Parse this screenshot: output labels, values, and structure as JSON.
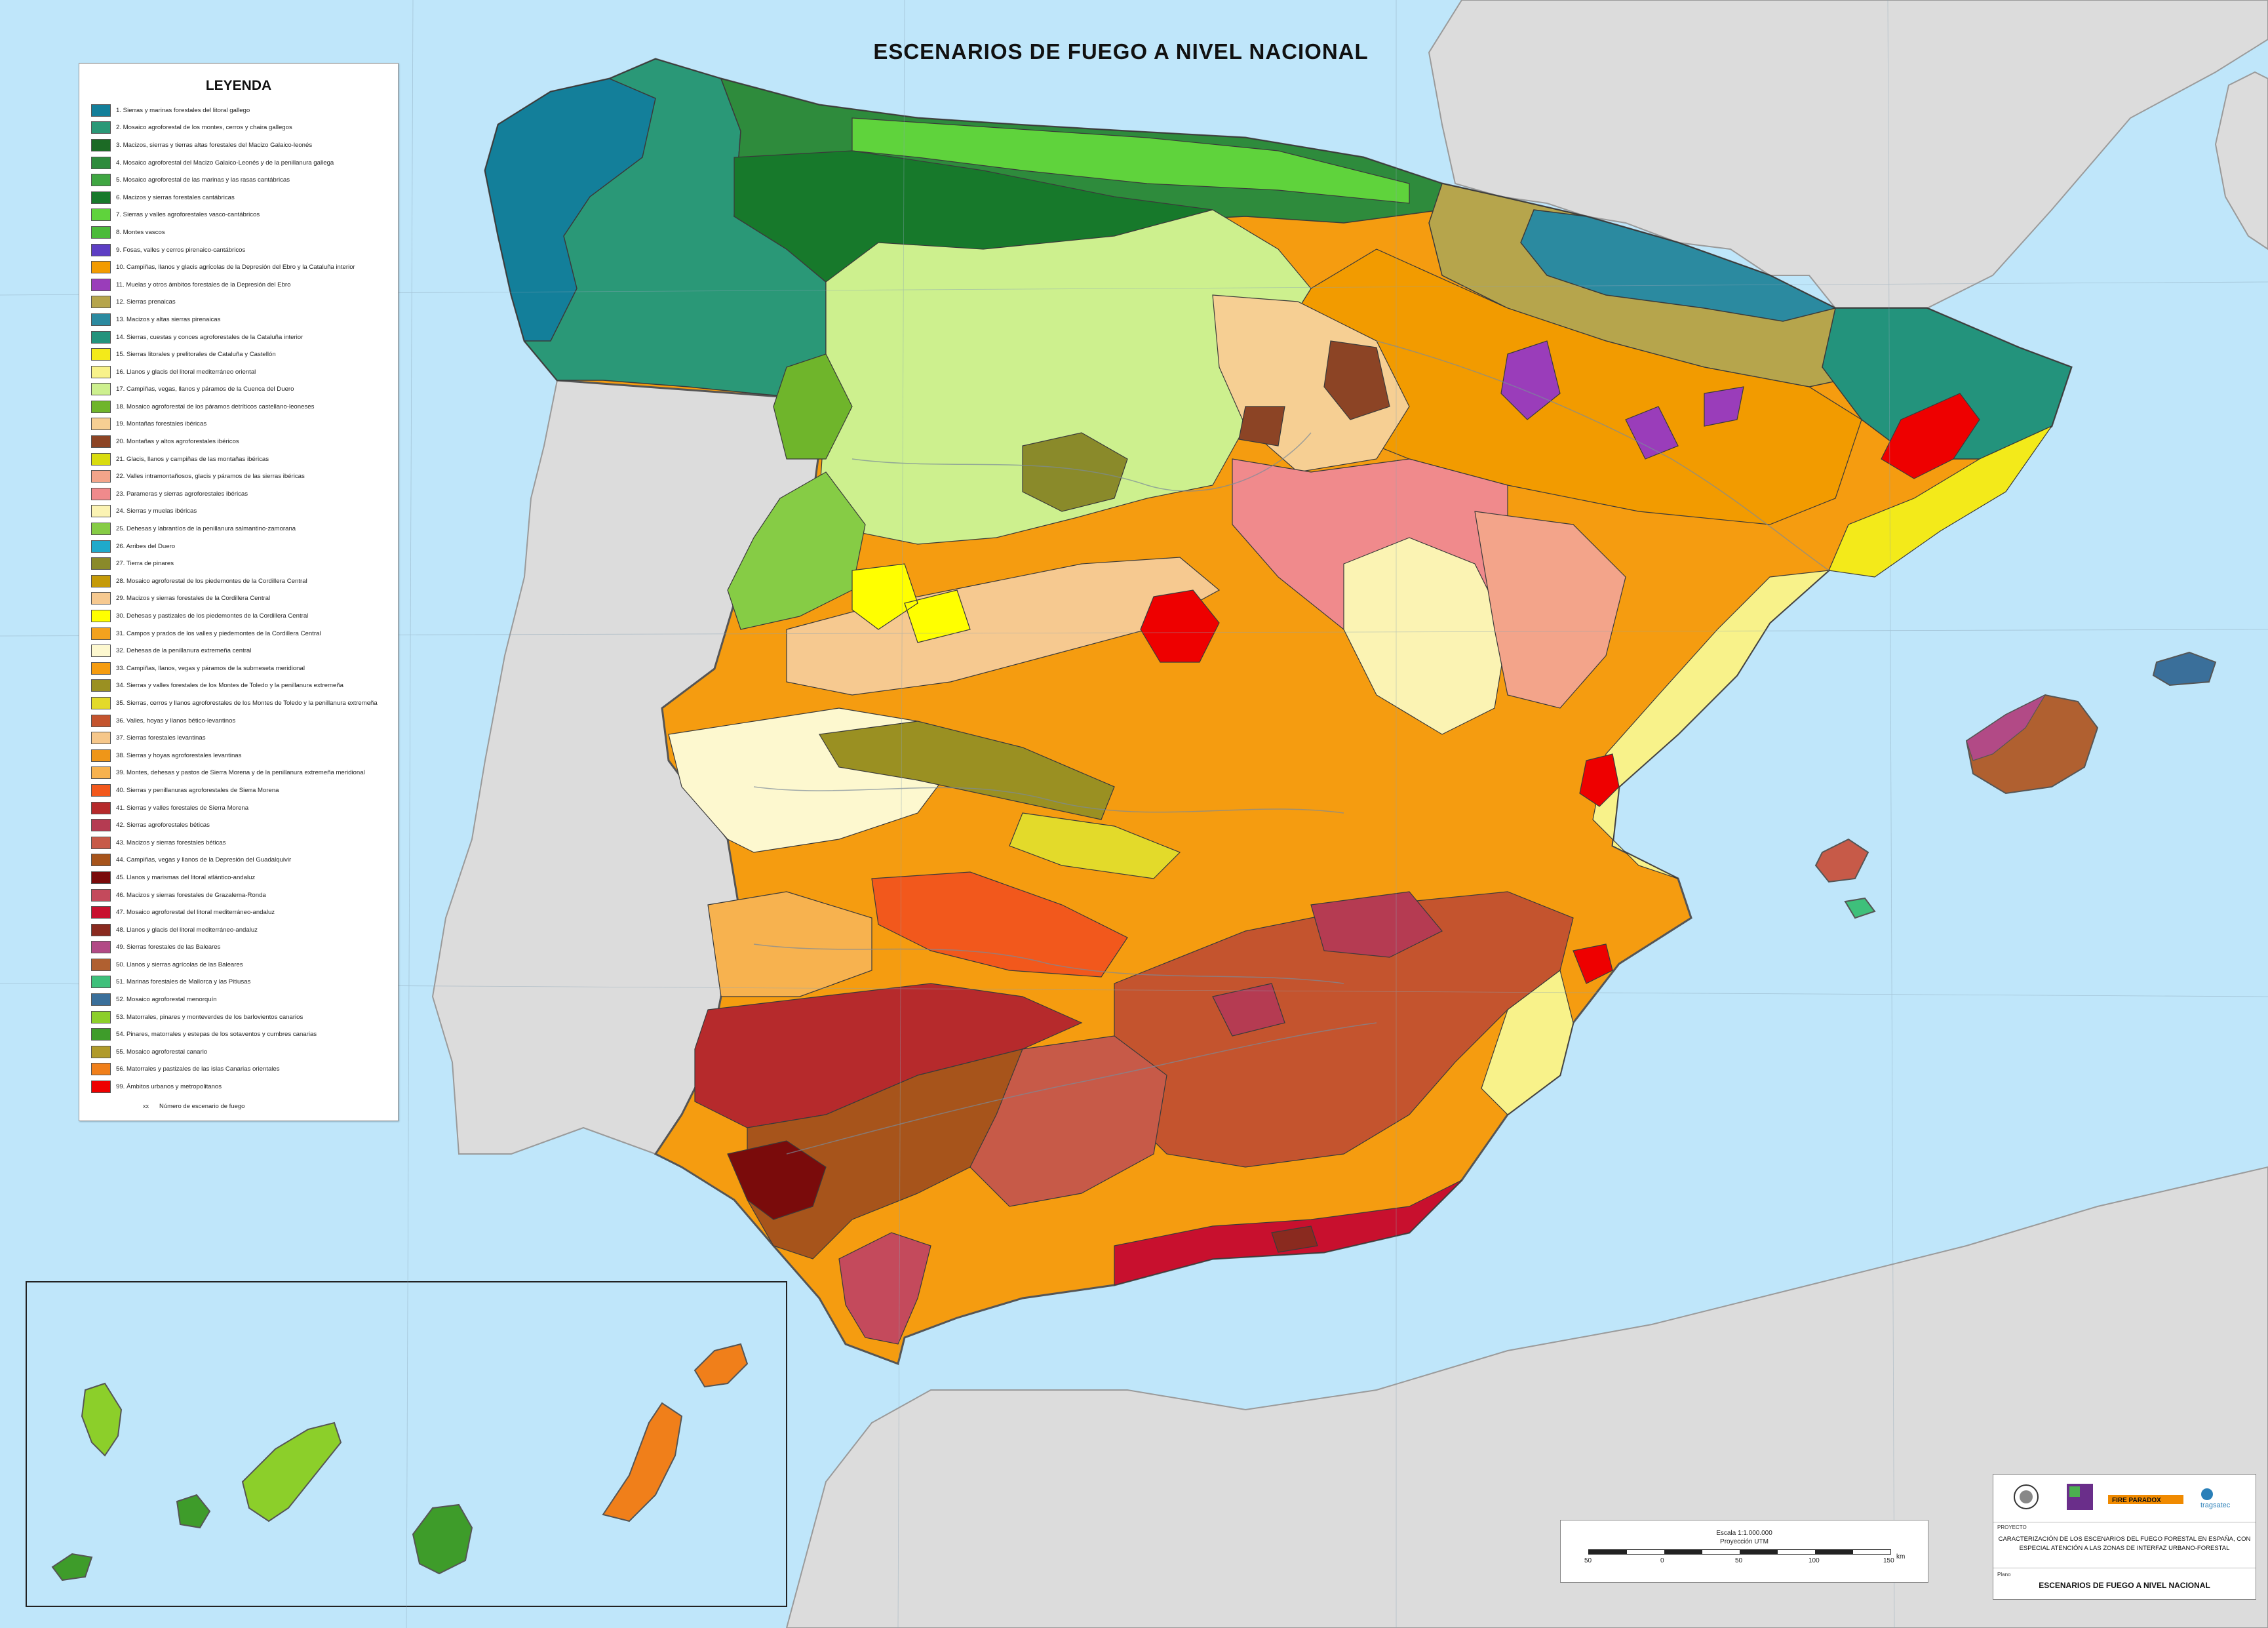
{
  "map": {
    "title": "ESCENARIOS DE FUEGO A NIVEL NACIONAL",
    "colors": {
      "sea": "#bfe6fa",
      "foreign_land": "#dcdcdc",
      "border": "#555555"
    }
  },
  "legend": {
    "title": "LEYENDA",
    "items": [
      {
        "label": "1. Sierras y marinas forestales del litoral gallego",
        "color": "#137f9a"
      },
      {
        "label": "2. Mosaico agroforestal de los montes, cerros y chaira gallegos",
        "color": "#2a9877"
      },
      {
        "label": "3. Macizos, sierras y tierras altas forestales del Macizo Galaico-leonés",
        "color": "#1c6a25"
      },
      {
        "label": "4. Mosaico agroforestal del Macizo Galaico-Leonés y de la penillanura gallega",
        "color": "#2e8b3c"
      },
      {
        "label": "5. Mosaico agroforestal de las marinas y las rasas cantábricas",
        "color": "#3fa642"
      },
      {
        "label": "6. Macizos y sierras forestales cantábricas",
        "color": "#17792b"
      },
      {
        "label": "7. Sierras y valles agroforestales vasco-cantábricos",
        "color": "#5fd33c"
      },
      {
        "label": "8. Montes vascos",
        "color": "#4cbb3a"
      },
      {
        "label": "9. Fosas, valles y cerros pirenaico-cantábricos",
        "color": "#5d3ec4"
      },
      {
        "label": "10. Campiñas, llanos y glacis agrícolas de la Depresión del Ebro y la Cataluña interior",
        "color": "#f29b00"
      },
      {
        "label": "11. Muelas y otros ámbitos forestales de la Depresión del Ebro",
        "color": "#9a3dba"
      },
      {
        "label": "12. Sierras prenaicas",
        "color": "#b6a54c"
      },
      {
        "label": "13. Macizos y altas sierras pirenaicas",
        "color": "#2b8aa0"
      },
      {
        "label": "14. Sierras, cuestas y conces agroforestales de la Cataluña interior",
        "color": "#23937c"
      },
      {
        "label": "15. Sierras litorales y prelitorales de Cataluña y Castellón",
        "color": "#f3ea1a"
      },
      {
        "label": "16. Llanos y glacis del litoral mediterráneo oriental",
        "color": "#f8f28a"
      },
      {
        "label": "17. Campiñas, vegas, llanos y páramos de la Cuenca del Duero",
        "color": "#cdf08e"
      },
      {
        "label": "18. Mosaico agroforestal de los páramos detríticos castellano-leoneses",
        "color": "#6fb52b"
      },
      {
        "label": "19. Montañas forestales ibéricas",
        "color": "#f6cf93"
      },
      {
        "label": "20. Montañas y altos agroforestales ibéricos",
        "color": "#8c4425"
      },
      {
        "label": "21. Glacis, llanos y campiñas de las montañas ibéricas",
        "color": "#d9dc0e"
      },
      {
        "label": "22. Valles intramontañosos, glacis y páramos de las sierras ibéricas",
        "color": "#f3a48a"
      },
      {
        "label": "23. Parameras y sierras agroforestales ibéricas",
        "color": "#f08a8c"
      },
      {
        "label": "24. Sierras y muelas ibéricas",
        "color": "#fbf3b3"
      },
      {
        "label": "25. Dehesas y labrantíos de la penillanura salmantino-zamorana",
        "color": "#86cc45"
      },
      {
        "label": "26. Arribes del Duero",
        "color": "#1faacb"
      },
      {
        "label": "27. Tierra de pinares",
        "color": "#8a8a2a"
      },
      {
        "label": "28. Mosaico agroforestal de los piedemontes de la Cordillera Central",
        "color": "#c59a08"
      },
      {
        "label": "29. Macizos y sierras forestales de la Cordillera Central",
        "color": "#f6c990"
      },
      {
        "label": "30. Dehesas y pastizales de los piedemontes de la Cordillera Central",
        "color": "#ffff00"
      },
      {
        "label": "31. Campos y prados de los valles y piedemontes de la Cordillera Central",
        "color": "#f3a21e"
      },
      {
        "label": "32. Dehesas de la penillanura extremeña central",
        "color": "#fdf8cf"
      },
      {
        "label": "33. Campiñas, llanos, vegas y páramos de la submeseta meridional",
        "color": "#f59c10"
      },
      {
        "label": "34. Sierras y valles forestales de los Montes de Toledo y la penillanura extremeña",
        "color": "#9a9022"
      },
      {
        "label": "35. Sierras, cerros y llanos agroforestales de los Montes de Toledo y la penillanura extremeña",
        "color": "#e3da2a"
      },
      {
        "label": "36. Valles, hoyas y llanos bético-levantinos",
        "color": "#c4542e"
      },
      {
        "label": "37. Sierras forestales levantinas",
        "color": "#f6c78a"
      },
      {
        "label": "38. Sierras y hoyas agroforestales levantinas",
        "color": "#ef9618"
      },
      {
        "label": "39. Montes, dehesas y pastos de Sierra Morena y de la penillanura extremeña meridional",
        "color": "#f7b24f"
      },
      {
        "label": "40. Sierras y penillanuras agroforestales de Sierra Morena",
        "color": "#f2581c"
      },
      {
        "label": "41. Sierras y valles forestales de Sierra Morena",
        "color": "#b62a2c"
      },
      {
        "label": "42. Sierras agroforestales béticas",
        "color": "#b53b52"
      },
      {
        "label": "43. Macizos y sierras forestales béticas",
        "color": "#c75a48"
      },
      {
        "label": "44. Campiñas, vegas y llanos de la Depresión del Guadalquivir",
        "color": "#a7541b"
      },
      {
        "label": "45. Llanos y marismas del litoral atlántico-andaluz",
        "color": "#7a0b0b"
      },
      {
        "label": "46. Macizos y sierras forestales de Grazalema-Ronda",
        "color": "#c44a5c"
      },
      {
        "label": "47. Mosaico agroforestal del litoral mediterráneo-andaluz",
        "color": "#c8102e"
      },
      {
        "label": "48. Llanos y glacis del litoral mediterráneo-andaluz",
        "color": "#8a2a1f"
      },
      {
        "label": "49. Sierras forestales de las Baleares",
        "color": "#b24a86"
      },
      {
        "label": "50. Llanos y sierras agrícolas de las Baleares",
        "color": "#b06030"
      },
      {
        "label": "51. Marinas forestales de Mallorca y las Pitiusas",
        "color": "#3ec07b"
      },
      {
        "label": "52. Mosaico agroforestal menorquín",
        "color": "#3a6f9a"
      },
      {
        "label": "53. Matorrales, pinares y monteverdes de los barlovientos canarios",
        "color": "#8ccf2a"
      },
      {
        "label": "54. Pinares, matorrales y estepas de los sotaventos y cumbres canarias",
        "color": "#3e9c2a"
      },
      {
        "label": "55. Mosaico agroforestal canario",
        "color": "#b09a2a"
      },
      {
        "label": "56. Matorrales y pastizales de las islas Canarias orientales",
        "color": "#f07f1a"
      },
      {
        "label": "99. Ámbitos urbanos y metropolitanos",
        "color": "#ee0000"
      }
    ],
    "note": "Número de escenario de fuego"
  },
  "scale": {
    "text": "Escala      1:1.000.000",
    "projection": "Proyección UTM",
    "ticks": [
      "50",
      "0",
      "50",
      "100",
      "150"
    ],
    "unit": "km"
  },
  "title_block": {
    "project_label": "PROYECTO",
    "project": "CARACTERIZACIÓN DE LOS ESCENARIOS DEL FUEGO FORESTAL EN ESPAÑA, CON ESPECIAL ATENCIÓN A LAS ZONAS DE INTERFAZ URBANO-FORESTAL",
    "plane_label": "Plano",
    "plane": "ESCENARIOS DE FUEGO A NIVEL NACIONAL",
    "logos": [
      "university-crest",
      "gfi-logo",
      "fire-paradox-logo",
      "tragsatec-logo"
    ],
    "logo_texts": [
      "FIRE PARADOX",
      "tragsatec"
    ]
  }
}
